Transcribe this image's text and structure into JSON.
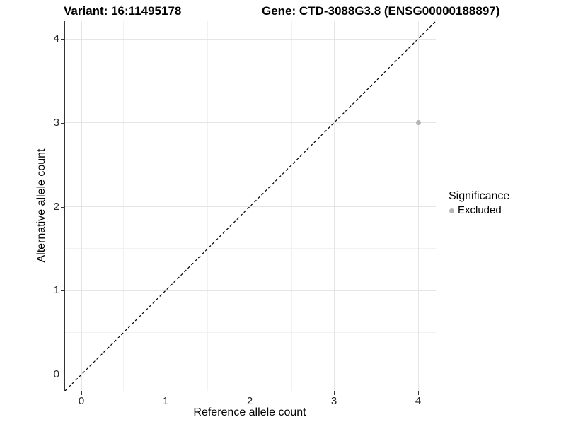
{
  "chart_data": {
    "type": "scatter",
    "titles": {
      "variant": "Variant: 16:11495178",
      "gene": "Gene: CTD-3088G3.8 (ENSG00000188897)"
    },
    "xlabel": "Reference allele count",
    "ylabel": "Alternative allele count",
    "xlim": [
      -0.2,
      4.2
    ],
    "ylim": [
      -0.2,
      4.2
    ],
    "xticks": [
      0,
      1,
      2,
      3,
      4
    ],
    "yticks": [
      0,
      1,
      2,
      3,
      4
    ],
    "x_minor": [
      0.5,
      1.5,
      2.5,
      3.5
    ],
    "y_minor": [
      0.5,
      1.5,
      2.5,
      3.5
    ],
    "grid": "major+minor",
    "points": [
      {
        "x": 4,
        "y": 3,
        "series": "Excluded"
      }
    ],
    "reference_line": {
      "type": "identity",
      "equation": "y = x",
      "style": "dashed",
      "color": "#000000"
    },
    "legend": {
      "title": "Significance",
      "position": "right",
      "entries": [
        {
          "label": "Excluded",
          "color": "#b5b5b5"
        }
      ]
    },
    "colors": {
      "point": "#b5b5b5",
      "grid_major": "#e5e5e5",
      "grid_minor": "#f2f2f2",
      "axis_line": "#333333",
      "text": "#000000"
    }
  }
}
